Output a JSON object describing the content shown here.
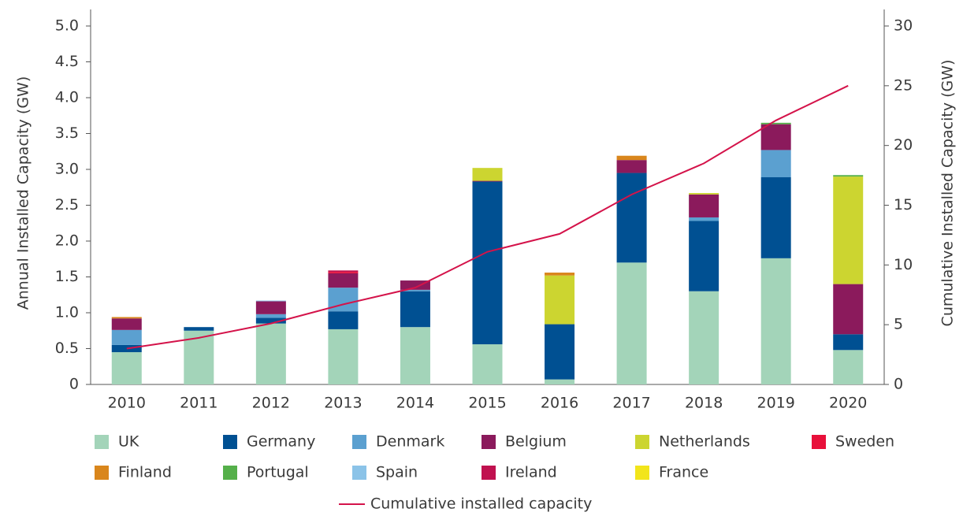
{
  "chart_data": {
    "type": "stacked-bar-line",
    "ylabel": "Annual Installed Capacity (GW)",
    "y2label": "Cumulative Installed Capacity (GW)",
    "categories": [
      "2010",
      "2011",
      "2012",
      "2013",
      "2014",
      "2015",
      "2016",
      "2017",
      "2018",
      "2019",
      "2020"
    ],
    "ylim": [
      0,
      5.0
    ],
    "yticks": [
      0,
      0.5,
      {
        "value": 1,
        "label": "1.0"
      },
      1.5,
      {
        "value": 2,
        "label": "2.0"
      },
      2.5,
      {
        "value": 3,
        "label": "3.0"
      },
      3.5,
      {
        "value": 4,
        "label": "4.0"
      },
      4.5,
      {
        "value": 5,
        "label": "5.0"
      }
    ],
    "y2lim": [
      0,
      30
    ],
    "y2ticks": [
      0,
      5,
      10,
      15,
      20,
      25,
      30
    ],
    "grid": false,
    "series": [
      {
        "name": "UK",
        "color": "#a3d4b9",
        "values": [
          0.45,
          0.75,
          0.85,
          0.77,
          0.8,
          0.56,
          0.07,
          1.7,
          1.3,
          1.76,
          0.48
        ]
      },
      {
        "name": "Germany",
        "color": "#005092",
        "values": [
          0.1,
          0.05,
          0.08,
          0.25,
          0.5,
          2.27,
          0.77,
          1.25,
          0.98,
          1.13,
          0.22
        ]
      },
      {
        "name": "Denmark",
        "color": "#5ba0d0",
        "values": [
          0.21,
          0,
          0.05,
          0.33,
          0.02,
          0,
          0,
          0,
          0.05,
          0.38,
          0
        ]
      },
      {
        "name": "Belgium",
        "color": "#8b1a5c",
        "values": [
          0.16,
          0,
          0.18,
          0.2,
          0.13,
          0.01,
          0,
          0.18,
          0.32,
          0.36,
          0.7
        ]
      },
      {
        "name": "Netherlands",
        "color": "#ccd530",
        "values": [
          0,
          0,
          0,
          0,
          0,
          0.18,
          0.68,
          0,
          0.02,
          0,
          1.5
        ]
      },
      {
        "name": "Sweden",
        "color": "#e8103a",
        "values": [
          0,
          0,
          0,
          0.02,
          0,
          0,
          0,
          0,
          0,
          0,
          0
        ]
      },
      {
        "name": "Finland",
        "color": "#d9861c",
        "values": [
          0.02,
          0,
          0,
          0,
          0,
          0,
          0.04,
          0.06,
          0,
          0,
          0
        ]
      },
      {
        "name": "Portugal",
        "color": "#55b04a",
        "values": [
          0,
          0,
          0,
          0,
          0,
          0,
          0,
          0,
          0,
          0.02,
          0.02
        ]
      },
      {
        "name": "Spain",
        "color": "#8bc3e8",
        "values": [
          0,
          0,
          0.01,
          0,
          0,
          0,
          0,
          0,
          0,
          0,
          0
        ]
      },
      {
        "name": "Ireland",
        "color": "#c0114f",
        "values": [
          0,
          0,
          0,
          0.02,
          0,
          0,
          0,
          0,
          0,
          0,
          0
        ]
      },
      {
        "name": "France",
        "color": "#f2e51b",
        "values": [
          0,
          0,
          0,
          0,
          0,
          0,
          0,
          0,
          0,
          0,
          0
        ]
      },
      {
        "name": "Cumulative installed capacity",
        "color": "#d4134a",
        "axis": "y2",
        "type": "line",
        "values": [
          3.0,
          3.9,
          5.1,
          6.7,
          8.1,
          11.1,
          12.6,
          15.9,
          18.5,
          22.1,
          25.0
        ]
      }
    ]
  }
}
